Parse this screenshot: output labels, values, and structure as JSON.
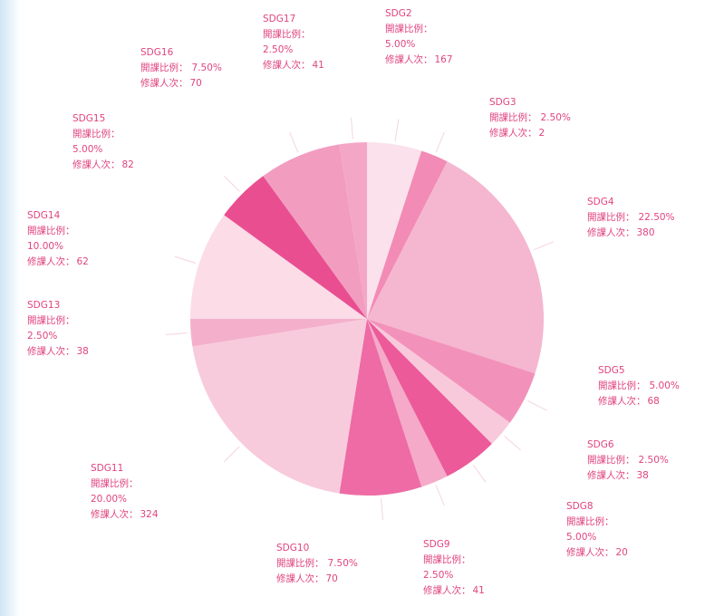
{
  "chart_data": {
    "type": "pie",
    "categories": [
      "SDG2",
      "SDG3",
      "SDG4",
      "SDG5",
      "SDG6",
      "SDG8",
      "SDG9",
      "SDG10",
      "SDG11",
      "SDG13",
      "SDG14",
      "SDG15",
      "SDG16",
      "SDG17"
    ],
    "values": [
      5,
      2.5,
      22.5,
      5,
      2.5,
      5,
      2.5,
      7.5,
      20,
      2.5,
      10,
      5,
      7.5,
      2.5
    ],
    "value_labels": [
      "5.00%",
      "2.50%",
      "22.50%",
      "5.00%",
      "2.50%",
      "5.00%",
      "2.50%",
      "7.50%",
      "20.00%",
      "2.50%",
      "10.00%",
      "5.00%",
      "7.50%",
      "2.50%"
    ],
    "counts": [
      167,
      2,
      380,
      68,
      38,
      20,
      41,
      70,
      324,
      38,
      62,
      82,
      70,
      41
    ],
    "ratio_label": "開課比例：",
    "count_label": "修課人次：",
    "colors": [
      "#fbe1eb",
      "#f28bb5",
      "#f5b6d0",
      "#f292ba",
      "#f8c9db",
      "#ec5a9a",
      "#f4aac8",
      "#ee6ba5",
      "#f8cbdc",
      "#f4b0cb",
      "#fbdce7",
      "#e94e91",
      "#f29cc0",
      "#f4a6c6"
    ]
  }
}
